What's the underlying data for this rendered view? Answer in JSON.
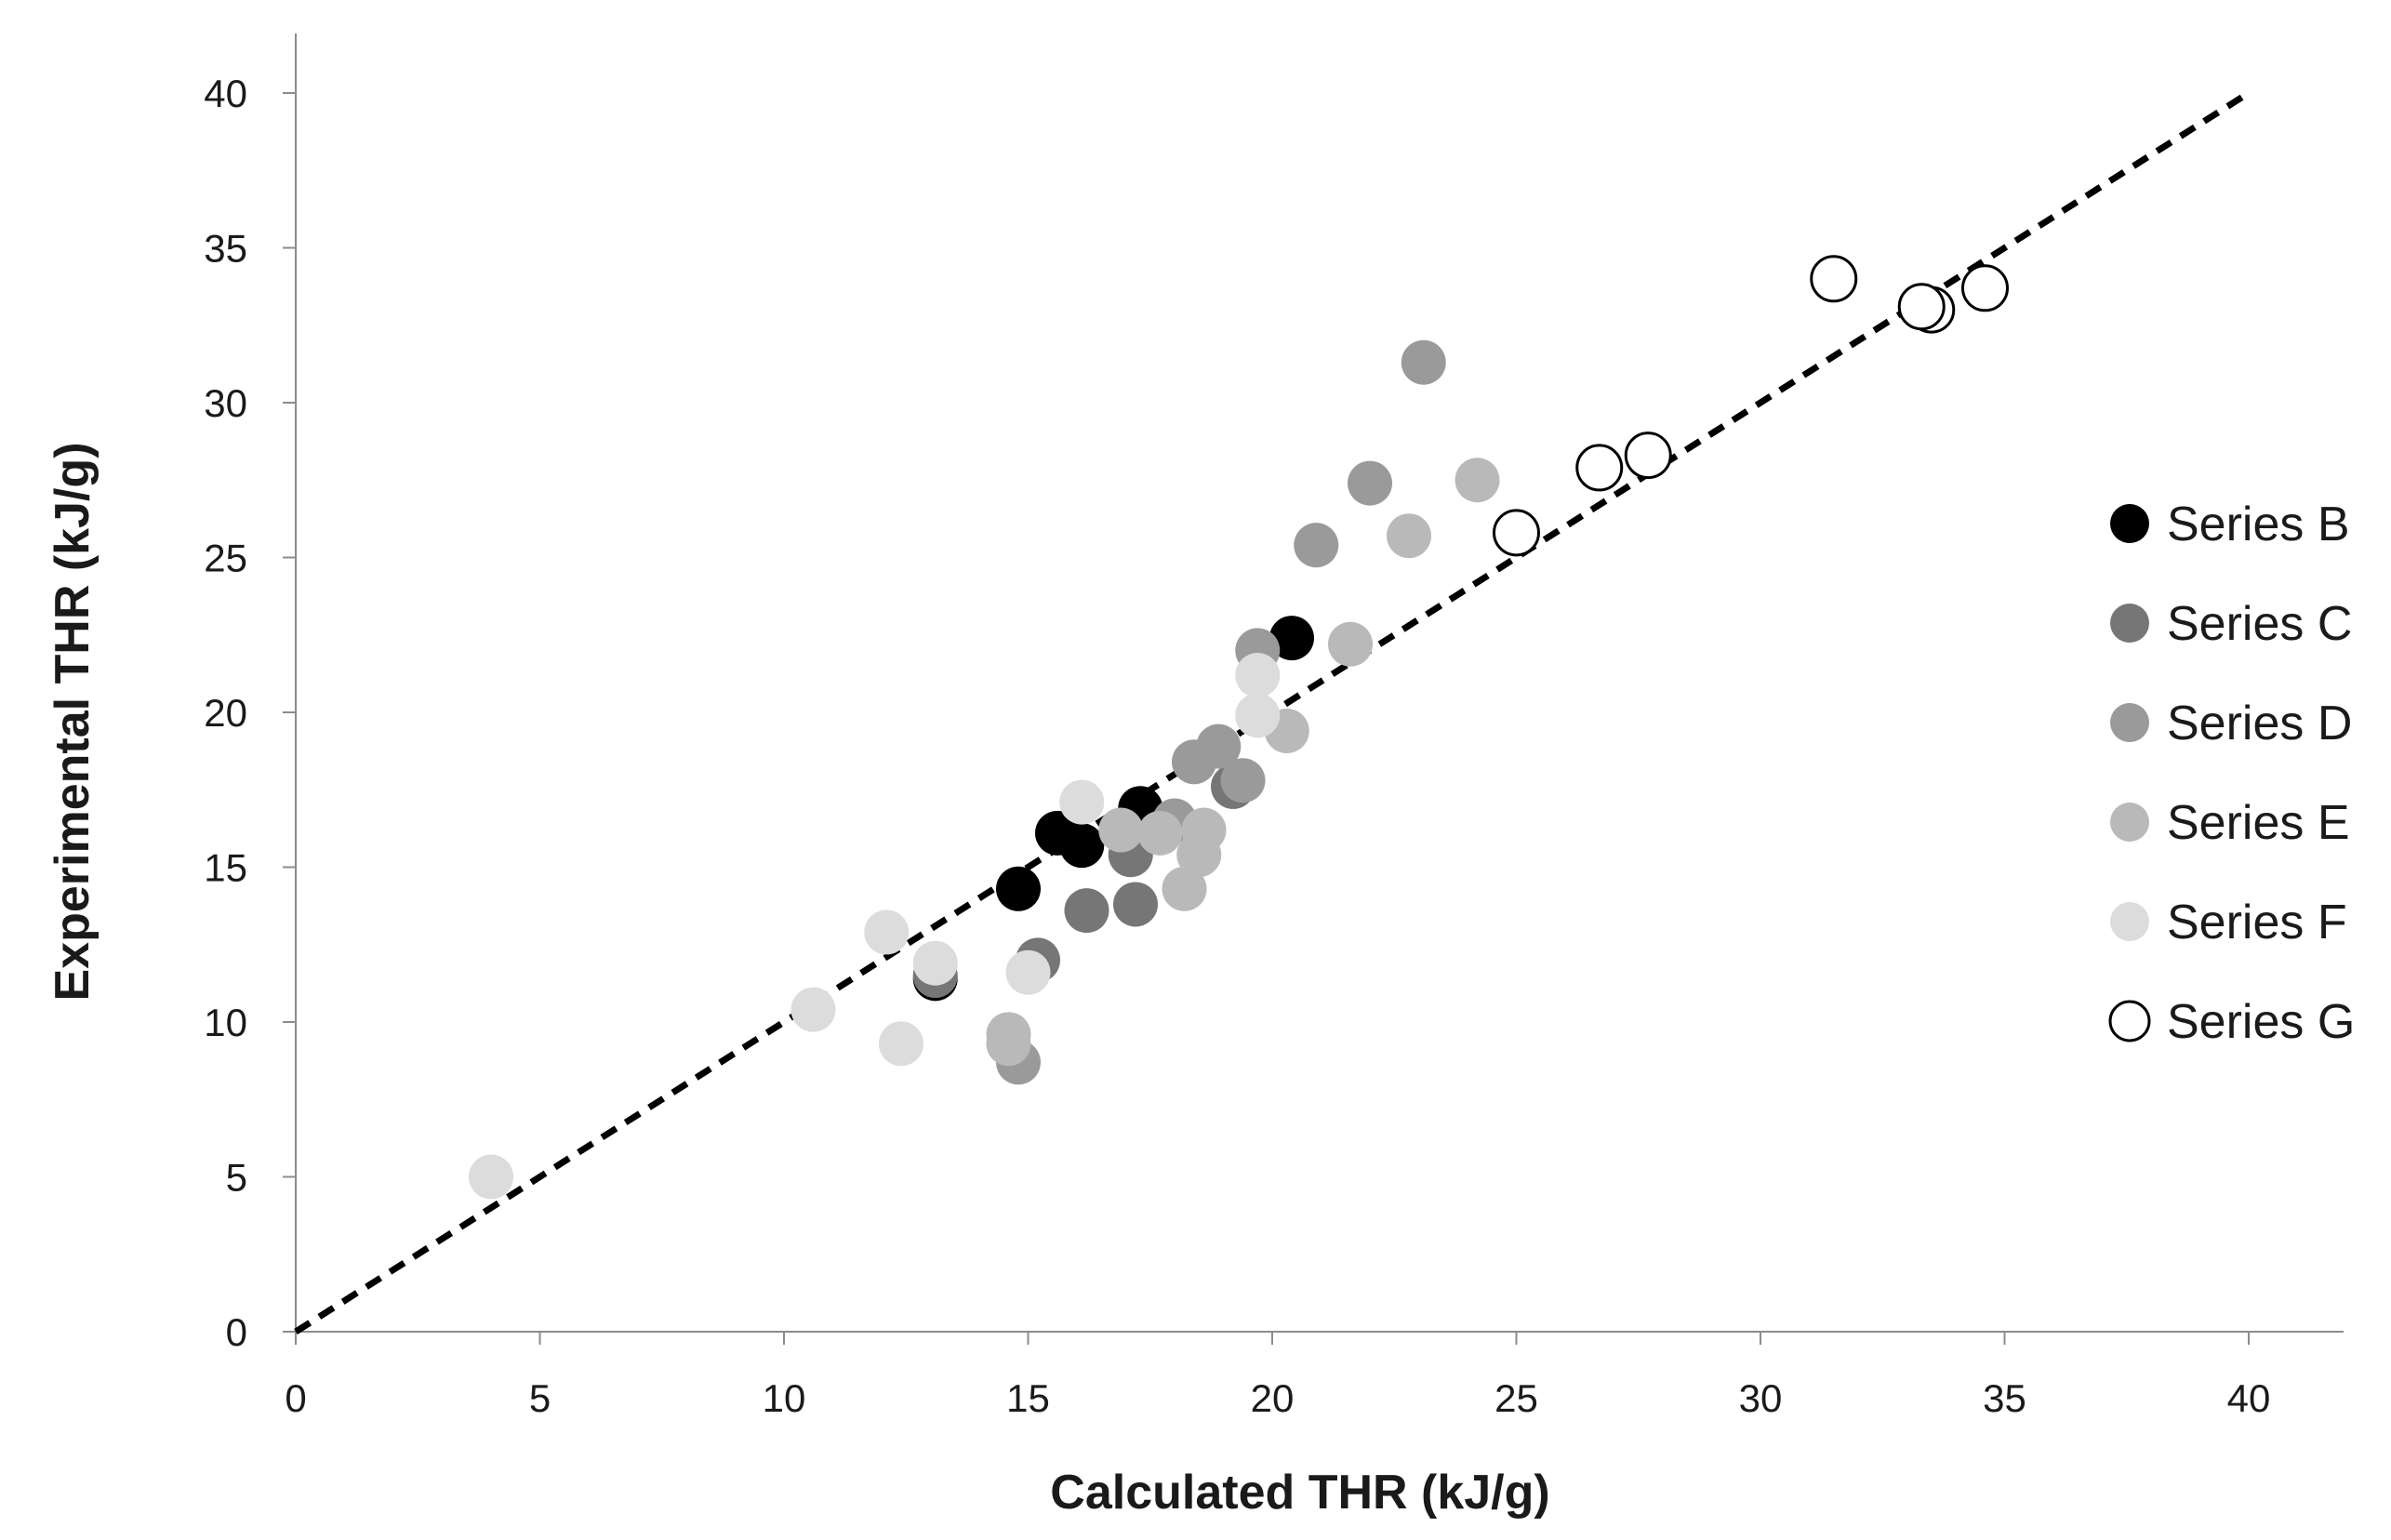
{
  "chart_data": {
    "type": "scatter",
    "xlabel": "Calculated THR (kJ/g)",
    "ylabel": "Experimental THR (kJ/g)",
    "xlim": [
      0,
      40
    ],
    "ylim": [
      0,
      40
    ],
    "x_ticks": [
      0,
      5,
      10,
      15,
      20,
      25,
      30,
      35,
      40
    ],
    "y_ticks": [
      0,
      5,
      10,
      15,
      20,
      25,
      30,
      35,
      40
    ],
    "grid": false,
    "legend_position": "right",
    "reference_line": {
      "style": "dashed",
      "color": "#000000",
      "points": [
        [
          0,
          0
        ],
        [
          40,
          40
        ]
      ]
    },
    "series": [
      {
        "name": "Series B",
        "color": "#000000",
        "fill": true,
        "points": [
          [
            13.1,
            11.4
          ],
          [
            14.8,
            14.3
          ],
          [
            15.6,
            16.1
          ],
          [
            16.1,
            15.7
          ],
          [
            17.3,
            16.9
          ],
          [
            20.4,
            22.4
          ]
        ]
      },
      {
        "name": "Series C",
        "color": "#767676",
        "fill": true,
        "points": [
          [
            13.1,
            11.5
          ],
          [
            15.2,
            12.0
          ],
          [
            16.2,
            13.6
          ],
          [
            17.1,
            15.4
          ],
          [
            17.2,
            13.8
          ],
          [
            19.2,
            17.6
          ]
        ]
      },
      {
        "name": "Series D",
        "color": "#9a9a9a",
        "fill": true,
        "points": [
          [
            14.8,
            8.7
          ],
          [
            18.0,
            16.5
          ],
          [
            18.4,
            18.4
          ],
          [
            18.9,
            18.9
          ],
          [
            19.4,
            17.8
          ],
          [
            19.7,
            22.0
          ],
          [
            20.9,
            25.4
          ],
          [
            22.0,
            27.4
          ],
          [
            23.1,
            31.3
          ]
        ]
      },
      {
        "name": "Series E",
        "color": "#b9b9b9",
        "fill": true,
        "points": [
          [
            14.6,
            9.3
          ],
          [
            14.6,
            9.6
          ],
          [
            16.9,
            16.2
          ],
          [
            17.7,
            16.1
          ],
          [
            18.2,
            14.3
          ],
          [
            18.5,
            15.4
          ],
          [
            18.6,
            16.2
          ],
          [
            20.3,
            19.4
          ],
          [
            21.6,
            22.2
          ],
          [
            22.8,
            25.7
          ],
          [
            24.2,
            27.5
          ]
        ]
      },
      {
        "name": "Series F",
        "color": "#dcdcdc",
        "fill": true,
        "points": [
          [
            4.0,
            5.0
          ],
          [
            10.6,
            10.4
          ],
          [
            12.1,
            12.9
          ],
          [
            12.4,
            9.3
          ],
          [
            13.1,
            11.9
          ],
          [
            15.0,
            11.6
          ],
          [
            16.1,
            17.1
          ],
          [
            19.7,
            19.9
          ],
          [
            19.7,
            21.2
          ]
        ]
      },
      {
        "name": "Series G",
        "color": "#000000",
        "fill": false,
        "points": [
          [
            25.0,
            25.8
          ],
          [
            26.7,
            27.9
          ],
          [
            27.7,
            28.3
          ],
          [
            31.5,
            34.0
          ],
          [
            33.5,
            33.0
          ],
          [
            33.3,
            33.1
          ],
          [
            34.6,
            33.7
          ]
        ]
      }
    ]
  }
}
